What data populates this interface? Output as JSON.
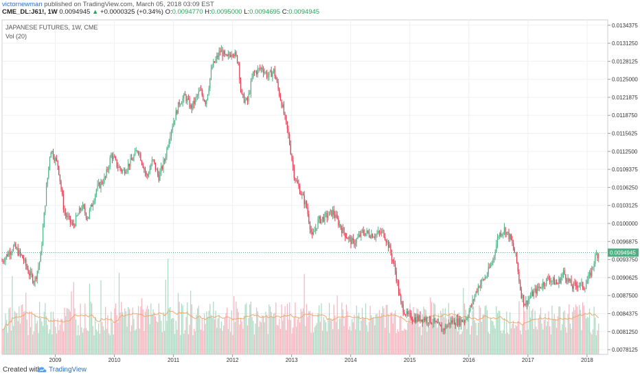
{
  "header": {
    "author": "victornewman",
    "published_text": "published on TradingView.com, March 05, 2018 03:09 EST",
    "symbol": "CME_DL:J61!, 1W",
    "last": "0.0094945",
    "change": "+0.0000325 (+0.34%)",
    "open_label": "O:",
    "open": "0.0094770",
    "high_label": "H:",
    "high": "0.0095000",
    "low_label": "L:",
    "low": "0.0094695",
    "close_label": "C:",
    "close": "0.0094945"
  },
  "footer": {
    "created_with": "Created with",
    "brand": "TradingView"
  },
  "colors": {
    "up": "#4caf82",
    "down": "#e0394d",
    "vol_up": "#a9d9c1",
    "vol_down": "#f5b3bd",
    "ma": "#f0a868",
    "price_line": "#4caf82",
    "grid": "#eef0f3"
  },
  "chart_data": {
    "type": "candlestick",
    "title": "JAPANESE FUTURES, 1W, CME",
    "indicator": "Vol (20)",
    "y_ticks": [
      "0.0134375",
      "0.0131250",
      "0.0128125",
      "0.0125000",
      "0.0121875",
      "0.0118750",
      "0.0115625",
      "0.0112500",
      "0.0109375",
      "0.0106250",
      "0.0103125",
      "0.0100000",
      "0.0096875",
      "0.0093750",
      "0.0090625",
      "0.0087500",
      "0.0084375",
      "0.0081250",
      "0.0078125"
    ],
    "ylim": [
      0.00773,
      0.01353
    ],
    "x_ticks": [
      "2009",
      "2010",
      "2011",
      "2012",
      "2013",
      "2014",
      "2015",
      "2016",
      "2017",
      "2018"
    ],
    "xlim": [
      2008.1,
      2018.35
    ],
    "current_price_label": "0.0094945",
    "current_price": 0.0094945,
    "price_path": [
      [
        2008.1,
        0.00935
      ],
      [
        2008.3,
        0.0096
      ],
      [
        2008.45,
        0.0094
      ],
      [
        2008.55,
        0.00915
      ],
      [
        2008.65,
        0.009
      ],
      [
        2008.75,
        0.0094
      ],
      [
        2008.85,
        0.0106
      ],
      [
        2008.92,
        0.0113
      ],
      [
        2009.05,
        0.011
      ],
      [
        2009.15,
        0.0102
      ],
      [
        2009.3,
        0.00995
      ],
      [
        2009.45,
        0.0103
      ],
      [
        2009.55,
        0.0101
      ],
      [
        2009.7,
        0.0106
      ],
      [
        2009.85,
        0.0108
      ],
      [
        2009.95,
        0.0112
      ],
      [
        2010.05,
        0.011
      ],
      [
        2010.15,
        0.0109
      ],
      [
        2010.3,
        0.0111
      ],
      [
        2010.4,
        0.0113
      ],
      [
        2010.55,
        0.0108
      ],
      [
        2010.65,
        0.0111
      ],
      [
        2010.75,
        0.0108
      ],
      [
        2010.85,
        0.0111
      ],
      [
        2010.95,
        0.0116
      ],
      [
        2011.1,
        0.0121
      ],
      [
        2011.2,
        0.0122
      ],
      [
        2011.3,
        0.012
      ],
      [
        2011.45,
        0.0123
      ],
      [
        2011.55,
        0.0121
      ],
      [
        2011.65,
        0.0127
      ],
      [
        2011.8,
        0.013
      ],
      [
        2011.9,
        0.01285
      ],
      [
        2012.0,
        0.013
      ],
      [
        2012.1,
        0.0128
      ],
      [
        2012.15,
        0.0122
      ],
      [
        2012.25,
        0.0121
      ],
      [
        2012.35,
        0.0126
      ],
      [
        2012.5,
        0.0127
      ],
      [
        2012.6,
        0.01255
      ],
      [
        2012.7,
        0.01265
      ],
      [
        2012.85,
        0.012
      ],
      [
        2012.95,
        0.0115
      ],
      [
        2013.05,
        0.0108
      ],
      [
        2013.15,
        0.01055
      ],
      [
        2013.25,
        0.0103
      ],
      [
        2013.35,
        0.00975
      ],
      [
        2013.45,
        0.01005
      ],
      [
        2013.55,
        0.0101
      ],
      [
        2013.7,
        0.0102
      ],
      [
        2013.85,
        0.0099
      ],
      [
        2013.95,
        0.00975
      ],
      [
        2014.05,
        0.00965
      ],
      [
        2014.2,
        0.00985
      ],
      [
        2014.4,
        0.0098
      ],
      [
        2014.55,
        0.00985
      ],
      [
        2014.65,
        0.0096
      ],
      [
        2014.75,
        0.0092
      ],
      [
        2014.85,
        0.0086
      ],
      [
        2014.95,
        0.0084
      ],
      [
        2015.1,
        0.00835
      ],
      [
        2015.25,
        0.00835
      ],
      [
        2015.4,
        0.0083
      ],
      [
        2015.55,
        0.00815
      ],
      [
        2015.7,
        0.0083
      ],
      [
        2015.85,
        0.0083
      ],
      [
        2015.95,
        0.00835
      ],
      [
        2016.05,
        0.0086
      ],
      [
        2016.15,
        0.0089
      ],
      [
        2016.3,
        0.0091
      ],
      [
        2016.4,
        0.00935
      ],
      [
        2016.5,
        0.0098
      ],
      [
        2016.6,
        0.0099
      ],
      [
        2016.7,
        0.00975
      ],
      [
        2016.8,
        0.0094
      ],
      [
        2016.88,
        0.0088
      ],
      [
        2016.95,
        0.0086
      ],
      [
        2017.05,
        0.00875
      ],
      [
        2017.2,
        0.0089
      ],
      [
        2017.35,
        0.00905
      ],
      [
        2017.5,
        0.00895
      ],
      [
        2017.6,
        0.00915
      ],
      [
        2017.75,
        0.0089
      ],
      [
        2017.85,
        0.00895
      ],
      [
        2017.95,
        0.0089
      ],
      [
        2018.05,
        0.0091
      ],
      [
        2018.15,
        0.00945
      ],
      [
        2018.2,
        0.00949
      ]
    ]
  }
}
